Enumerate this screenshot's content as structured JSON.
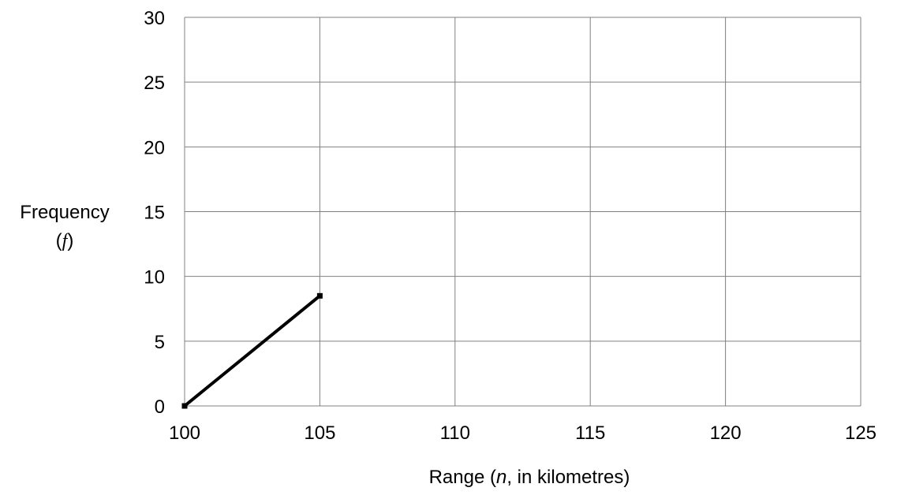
{
  "chart_data": {
    "type": "line",
    "title": "",
    "xlabel_parts": {
      "before": "Range (",
      "var": "n",
      "after": ", in kilometres)"
    },
    "ylabel_line1": "Frequency",
    "ylabel_line2_parts": {
      "before": "(",
      "var": "f",
      "after": ")"
    },
    "xlim": [
      100,
      125
    ],
    "ylim": [
      0,
      30
    ],
    "x_ticks": [
      100,
      105,
      110,
      115,
      120,
      125
    ],
    "y_ticks": [
      0,
      5,
      10,
      15,
      20,
      25,
      30
    ],
    "grid": true,
    "series": [
      {
        "x": [
          100,
          105
        ],
        "y": [
          0,
          8.5
        ],
        "color": "#000000",
        "marker": "square"
      }
    ]
  }
}
